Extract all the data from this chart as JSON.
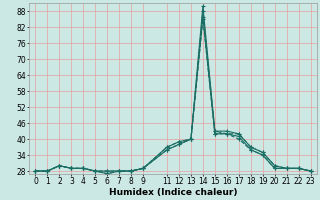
{
  "xlabel": "Humidex (Indice chaleur)",
  "bg_color": "#cce8e4",
  "grid_color": "#e8a0a0",
  "line_color": "#1a6e64",
  "xlim": [
    -0.5,
    23.5
  ],
  "ylim": [
    27,
    91
  ],
  "yticks": [
    28,
    34,
    40,
    46,
    52,
    58,
    64,
    70,
    76,
    82,
    88
  ],
  "xtick_positions": [
    0,
    1,
    2,
    3,
    4,
    5,
    6,
    7,
    8,
    9,
    11,
    12,
    13,
    14,
    15,
    16,
    17,
    18,
    19,
    20,
    21,
    22,
    23
  ],
  "xtick_labels": [
    "0",
    "1",
    "2",
    "3",
    "4",
    "5",
    "6",
    "7",
    "8",
    "9",
    "11",
    "12",
    "13",
    "14",
    "15",
    "16",
    "17",
    "18",
    "19",
    "20",
    "21",
    "22",
    "23"
  ],
  "series": [
    {
      "x": [
        0,
        1,
        2,
        3,
        4,
        5,
        6,
        7,
        8,
        9,
        11,
        12,
        13,
        14,
        15,
        16,
        17,
        18,
        19,
        20,
        21,
        22,
        23
      ],
      "y": [
        28,
        28,
        30,
        29,
        29,
        28,
        28,
        28,
        28,
        29,
        37,
        39,
        40,
        90,
        43,
        43,
        42,
        37,
        35,
        30,
        29,
        29,
        28
      ],
      "ls": "-"
    },
    {
      "x": [
        0,
        1,
        2,
        3,
        4,
        5,
        6,
        7,
        8,
        9,
        11,
        12,
        13,
        14,
        15,
        16,
        17,
        18,
        19,
        20,
        21,
        22,
        23
      ],
      "y": [
        28,
        28,
        30,
        29,
        29,
        28,
        27,
        28,
        28,
        29,
        36,
        38,
        40,
        86,
        42,
        42,
        41,
        36,
        34,
        29,
        29,
        29,
        28
      ],
      "ls": "-"
    },
    {
      "x": [
        0,
        1,
        2,
        3,
        4,
        5,
        6,
        7,
        8,
        9,
        11,
        12,
        13,
        14,
        15,
        16,
        17,
        18,
        19,
        20,
        21,
        22,
        23
      ],
      "y": [
        28,
        28,
        30,
        29,
        29,
        28,
        27,
        28,
        28,
        29,
        36,
        38,
        40,
        85,
        42,
        42,
        40,
        36,
        34,
        29,
        29,
        29,
        28
      ],
      "ls": "--"
    },
    {
      "x": [
        0,
        1,
        2,
        3,
        4,
        5,
        6,
        7,
        8,
        9,
        11,
        12,
        13,
        14,
        15,
        16,
        17,
        18,
        19,
        20,
        21,
        22,
        23
      ],
      "y": [
        28,
        28,
        30,
        29,
        29,
        28,
        28,
        28,
        28,
        29,
        37,
        39,
        40,
        88,
        43,
        42,
        42,
        37,
        35,
        30,
        29,
        29,
        28
      ],
      "ls": "--"
    }
  ],
  "tick_fontsize": 5.5,
  "xlabel_fontsize": 6.5,
  "lw": 0.8,
  "marker": "+",
  "markersize": 3
}
